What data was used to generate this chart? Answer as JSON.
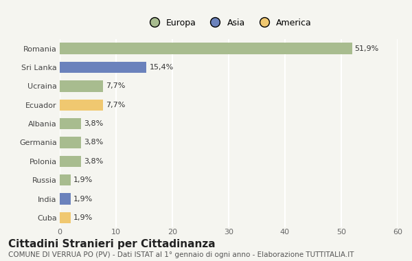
{
  "categories": [
    "Romania",
    "Sri Lanka",
    "Ucraina",
    "Ecuador",
    "Albania",
    "Germania",
    "Polonia",
    "Russia",
    "India",
    "Cuba"
  ],
  "values": [
    51.9,
    15.4,
    7.7,
    7.7,
    3.8,
    3.8,
    3.8,
    1.9,
    1.9,
    1.9
  ],
  "labels": [
    "51,9%",
    "15,4%",
    "7,7%",
    "7,7%",
    "3,8%",
    "3,8%",
    "3,8%",
    "1,9%",
    "1,9%",
    "1,9%"
  ],
  "colors": [
    "#a8bc8f",
    "#6b82bc",
    "#a8bc8f",
    "#f0c870",
    "#a8bc8f",
    "#a8bc8f",
    "#a8bc8f",
    "#a8bc8f",
    "#6b82bc",
    "#f0c870"
  ],
  "legend_labels": [
    "Europa",
    "Asia",
    "America"
  ],
  "legend_colors": [
    "#a8bc8f",
    "#6b82bc",
    "#f0c870"
  ],
  "xlim": [
    0,
    60
  ],
  "xticks": [
    0,
    10,
    20,
    30,
    40,
    50,
    60
  ],
  "title": "Cittadini Stranieri per Cittadinanza",
  "subtitle": "COMUNE DI VERRUA PO (PV) - Dati ISTAT al 1° gennaio di ogni anno - Elaborazione TUTTITALIA.IT",
  "background_color": "#f5f5f0",
  "grid_color": "#ffffff",
  "title_fontsize": 11,
  "subtitle_fontsize": 7.5,
  "label_fontsize": 8,
  "tick_fontsize": 8,
  "legend_fontsize": 9
}
